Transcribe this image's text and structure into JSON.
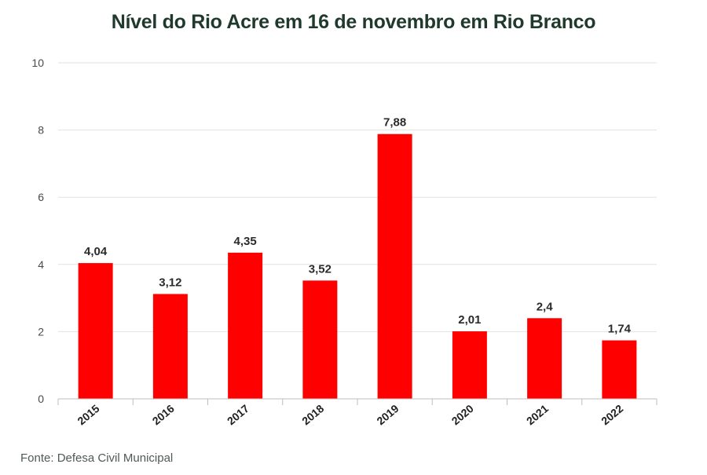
{
  "chart_data": {
    "type": "bar",
    "title": "Nível do Rio Acre em 16 de novembro em Rio Branco",
    "source": "Fonte: Defesa Civil Municipal",
    "categories": [
      "2015",
      "2016",
      "2017",
      "2018",
      "2019",
      "2020",
      "2021",
      "2022"
    ],
    "values": [
      4.04,
      3.12,
      4.35,
      3.52,
      7.88,
      2.01,
      2.4,
      1.74
    ],
    "value_labels": [
      "4,04",
      "3,12",
      "4,35",
      "3,52",
      "7,88",
      "2,01",
      "2,4",
      "1,74"
    ],
    "ylim": [
      0,
      10
    ],
    "yticks": [
      "0",
      "2",
      "4",
      "6",
      "8",
      "10"
    ],
    "grid": true,
    "colors": {
      "bar": "#ff0000",
      "title": "#1f3a2c",
      "grid": "#e2e2e2"
    }
  }
}
